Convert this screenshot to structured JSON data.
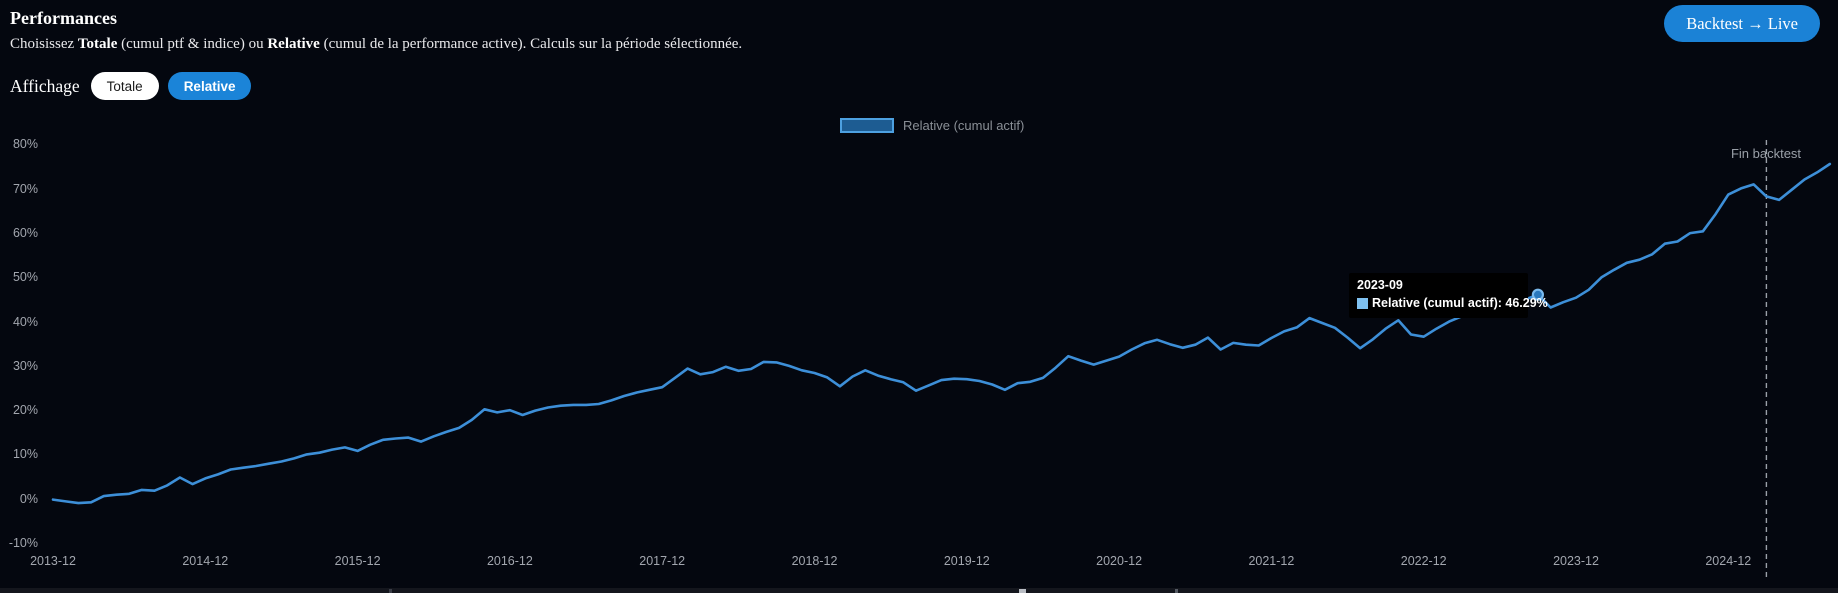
{
  "header": {
    "title": "Performances",
    "subtitle": {
      "p1": "Choisissez ",
      "b1": "Totale",
      "p2": " (cumul ptf & indice) ou ",
      "b2": "Relative",
      "p3": " (cumul de la performance active). Calculs sur la période sélectionnée."
    }
  },
  "backtest_live_button": "Backtest → Live",
  "affichage": {
    "label": "Affichage",
    "totale_button": "Totale",
    "relative_button": "Relative"
  },
  "legend": {
    "label": "Relative (cumul actif)"
  },
  "tooltip": {
    "date": "2023-09",
    "text": "Relative (cumul actif): 46.29%"
  },
  "annotation": {
    "fin_backtest": "Fin backtest"
  },
  "colors": {
    "background": "#04070f",
    "line": "#3d8fd8",
    "accent_blue": "#1b84d8",
    "legend_swatch_fill": "#1d5c92",
    "legend_swatch_border": "#4da0e0",
    "tooltip_swatch": "#7fc1f0",
    "axis_text": "#a2a6ae",
    "dashed_line": "#9aa0a8"
  },
  "chart_data": {
    "type": "line",
    "title": "",
    "xlabel": "",
    "ylabel": "",
    "ylim": [
      -10,
      80
    ],
    "grid": false,
    "legend_position": "top-center",
    "x_tick_labels": [
      "2013-12",
      "2014-12",
      "2015-12",
      "2016-12",
      "2017-12",
      "2018-12",
      "2019-12",
      "2020-12",
      "2021-12",
      "2022-12",
      "2023-12",
      "2024-12"
    ],
    "y_tick_values": [
      80,
      70,
      60,
      50,
      40,
      30,
      20,
      10,
      0,
      -10
    ],
    "y_tick_labels": [
      "80%",
      "70%",
      "60%",
      "50%",
      "40%",
      "30%",
      "20%",
      "10%",
      "0%",
      "-10%"
    ],
    "highlighted_point": {
      "x": "2023-09",
      "value": 46.29
    },
    "end_backtest_x": "2025-03",
    "series": [
      {
        "name": "Relative (cumul actif)",
        "x": [
          "2013-12",
          "2014-01",
          "2014-02",
          "2014-03",
          "2014-04",
          "2014-05",
          "2014-06",
          "2014-07",
          "2014-08",
          "2014-09",
          "2014-10",
          "2014-11",
          "2014-12",
          "2015-01",
          "2015-02",
          "2015-03",
          "2015-04",
          "2015-05",
          "2015-06",
          "2015-07",
          "2015-08",
          "2015-09",
          "2015-10",
          "2015-11",
          "2015-12",
          "2016-01",
          "2016-02",
          "2016-03",
          "2016-04",
          "2016-05",
          "2016-06",
          "2016-07",
          "2016-08",
          "2016-09",
          "2016-10",
          "2016-11",
          "2016-12",
          "2017-01",
          "2017-02",
          "2017-03",
          "2017-04",
          "2017-05",
          "2017-06",
          "2017-07",
          "2017-08",
          "2017-09",
          "2017-10",
          "2017-11",
          "2017-12",
          "2018-01",
          "2018-02",
          "2018-03",
          "2018-04",
          "2018-05",
          "2018-06",
          "2018-07",
          "2018-08",
          "2018-09",
          "2018-10",
          "2018-11",
          "2018-12",
          "2019-01",
          "2019-02",
          "2019-03",
          "2019-04",
          "2019-05",
          "2019-06",
          "2019-07",
          "2019-08",
          "2019-09",
          "2019-10",
          "2019-11",
          "2019-12",
          "2020-01",
          "2020-02",
          "2020-03",
          "2020-04",
          "2020-05",
          "2020-06",
          "2020-07",
          "2020-08",
          "2020-09",
          "2020-10",
          "2020-11",
          "2020-12",
          "2021-01",
          "2021-02",
          "2021-03",
          "2021-04",
          "2021-05",
          "2021-06",
          "2021-07",
          "2021-08",
          "2021-09",
          "2021-10",
          "2021-11",
          "2021-12",
          "2022-01",
          "2022-02",
          "2022-03",
          "2022-04",
          "2022-05",
          "2022-06",
          "2022-07",
          "2022-08",
          "2022-09",
          "2022-10",
          "2022-11",
          "2022-12",
          "2023-01",
          "2023-02",
          "2023-03",
          "2023-04",
          "2023-05",
          "2023-06",
          "2023-07",
          "2023-08",
          "2023-09",
          "2023-10",
          "2023-11",
          "2023-12",
          "2024-01",
          "2024-02",
          "2024-03",
          "2024-04",
          "2024-05",
          "2024-06",
          "2024-07",
          "2024-08",
          "2024-09",
          "2024-10",
          "2024-11",
          "2024-12",
          "2025-01",
          "2025-02",
          "2025-03",
          "2025-04",
          "2025-05",
          "2025-06",
          "2025-07",
          "2025-08"
        ],
        "values": [
          0.0,
          -0.4,
          -0.8,
          -0.6,
          0.8,
          1.1,
          1.3,
          2.2,
          2.0,
          3.2,
          5.0,
          3.5,
          4.8,
          5.7,
          6.8,
          7.2,
          7.6,
          8.1,
          8.6,
          9.3,
          10.2,
          10.6,
          11.3,
          11.8,
          11.0,
          12.4,
          13.5,
          13.8,
          14.0,
          13.1,
          14.3,
          15.3,
          16.2,
          18.0,
          20.4,
          19.7,
          20.2,
          19.1,
          20.1,
          20.8,
          21.2,
          21.4,
          21.4,
          21.6,
          22.4,
          23.4,
          24.2,
          24.8,
          25.4,
          27.5,
          29.6,
          28.3,
          28.8,
          30.0,
          29.1,
          29.5,
          31.1,
          31.0,
          30.2,
          29.2,
          28.6,
          27.6,
          25.6,
          27.8,
          29.2,
          28.0,
          27.2,
          26.5,
          24.6,
          25.8,
          27.0,
          27.3,
          27.2,
          26.8,
          26.0,
          24.8,
          26.3,
          26.6,
          27.5,
          29.8,
          32.4,
          31.4,
          30.5,
          31.4,
          32.3,
          33.9,
          35.3,
          36.1,
          35.1,
          34.3,
          35.0,
          36.6,
          33.9,
          35.4,
          35.0,
          34.8,
          36.5,
          38.0,
          38.9,
          41.0,
          39.9,
          38.8,
          36.6,
          34.2,
          36.2,
          38.6,
          40.5,
          37.3,
          36.8,
          38.6,
          40.2,
          41.4,
          42.3,
          42.9,
          43.6,
          44.5,
          45.2,
          46.29,
          43.4,
          44.6,
          45.6,
          47.4,
          50.2,
          51.9,
          53.5,
          54.2,
          55.4,
          57.8,
          58.3,
          60.2,
          60.6,
          64.5,
          68.9,
          70.3,
          71.2,
          68.5,
          67.7,
          70.0,
          72.3,
          73.9,
          75.8
        ]
      }
    ]
  }
}
